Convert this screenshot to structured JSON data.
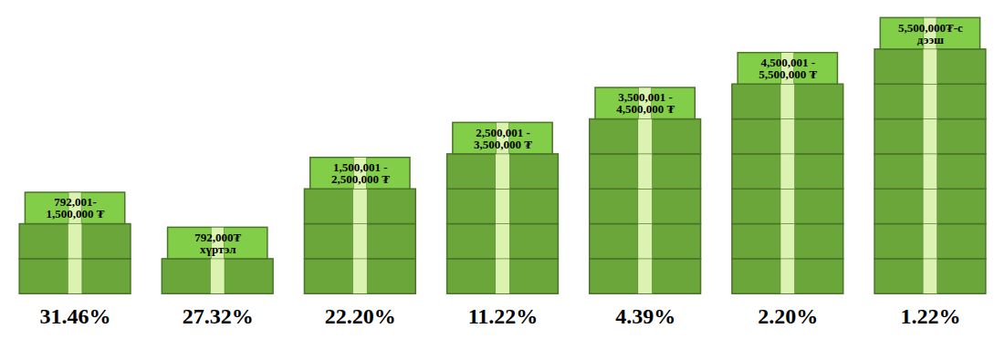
{
  "chart_data": {
    "type": "pictograph",
    "categories": [
      "792,001-1,500,000 ₮",
      "792,000₮ хүртэл",
      "1,500,001 - 2,500,000 ₮",
      "2,500,001 - 3,500,000 ₮",
      "3,500,001 - 4,500,000 ₮",
      "4,500,001 - 5,500,000 ₮",
      "5,500,000₮-с дээш"
    ],
    "values": [
      31.46,
      27.32,
      22.2,
      11.22,
      4.39,
      2.2,
      1.22
    ],
    "value_labels": [
      "31.46%",
      "27.32%",
      "22.20%",
      "11.22%",
      "4.39%",
      "2.20%",
      "1.22%"
    ],
    "bills": [
      2,
      1,
      3,
      4,
      5,
      6,
      7
    ],
    "color": "#6aa63a",
    "data_labels": true,
    "tick_labels": false
  }
}
